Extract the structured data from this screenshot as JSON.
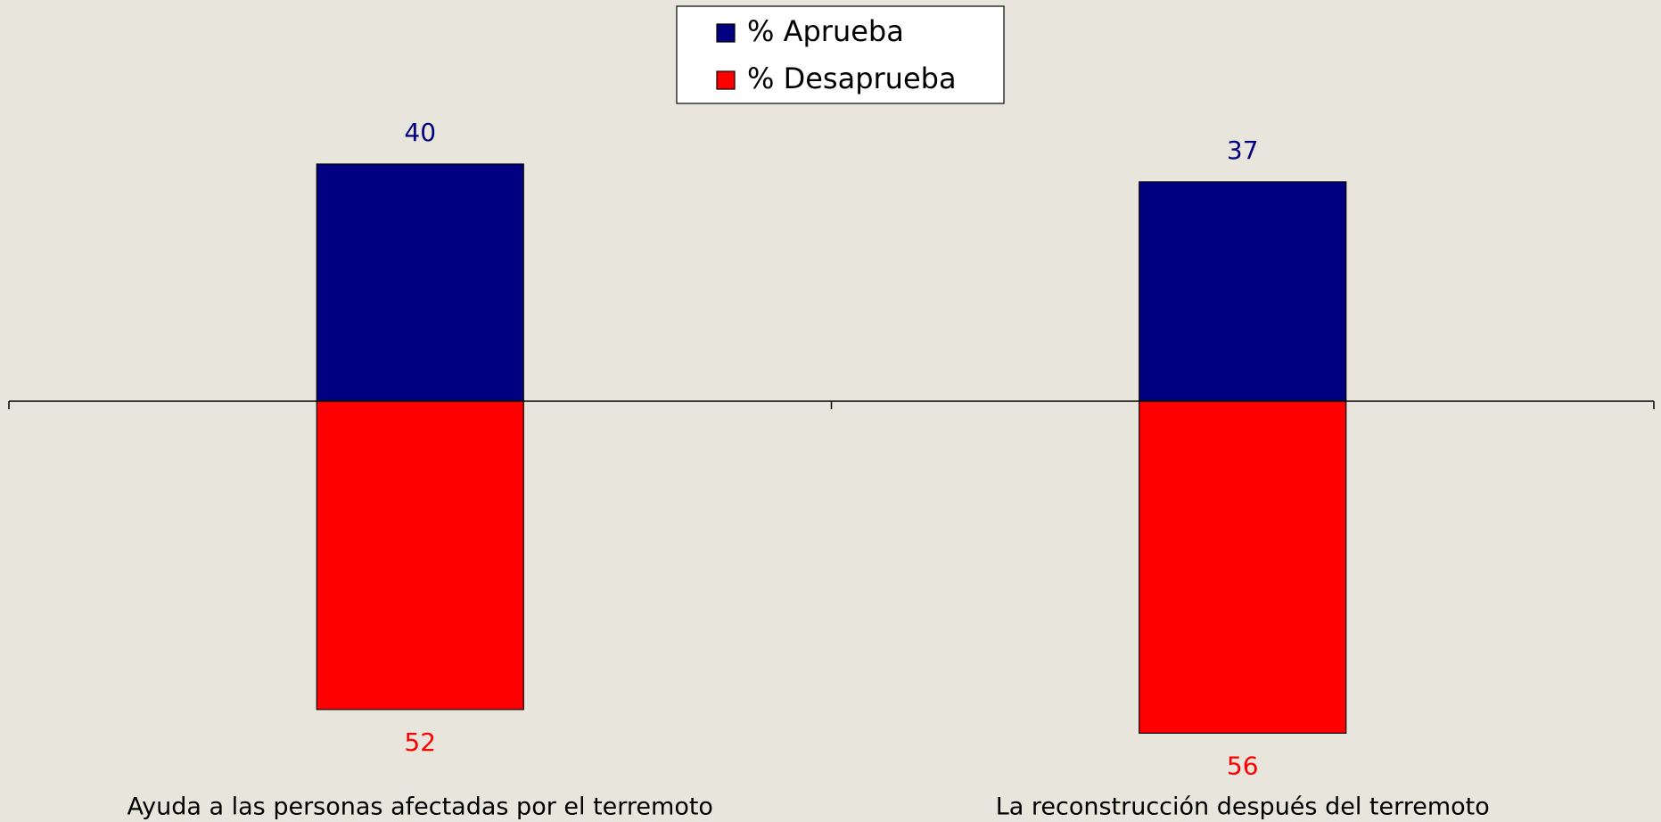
{
  "chart_data": {
    "type": "diverging_bar",
    "categories": [
      "Ayuda a las personas afectadas por el terremoto",
      "La reconstrucción después del terremoto"
    ],
    "series": [
      {
        "name": "% Aprueba",
        "color": "#000080",
        "values": [
          40,
          37
        ]
      },
      {
        "name": "% Desaprueba",
        "color": "#ff0000",
        "values": [
          -52,
          -56
        ],
        "value_labels": [
          "52",
          "56"
        ]
      }
    ],
    "legend": "top"
  }
}
